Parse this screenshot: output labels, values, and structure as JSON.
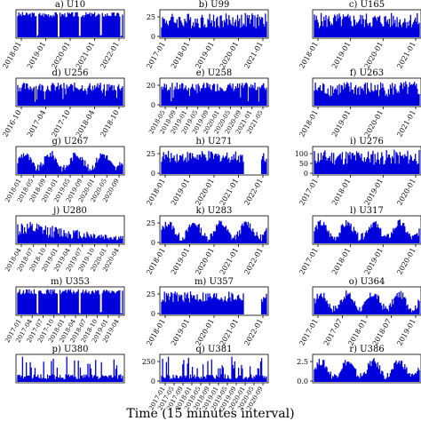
{
  "figure": {
    "xlabel": "Time (15 minutes interval)",
    "series_color": "#0000dd"
  },
  "chart_data": [
    {
      "type": "area",
      "title": "a) U10",
      "x_ticks": [
        "2018-01",
        "2019-01",
        "2020-01",
        "2021-01",
        "2022-01"
      ],
      "y_ticks": [],
      "pattern": "blocks"
    },
    {
      "type": "area",
      "title": "b) U99",
      "x_ticks": [
        "2017-01",
        "2018-01",
        "2019-01",
        "2020-01",
        "2021-01"
      ],
      "y_ticks": [
        "0",
        "25"
      ],
      "ylim": [
        0,
        30
      ],
      "pattern": "noisy"
    },
    {
      "type": "area",
      "title": "c) U165",
      "x_ticks": [
        "2018-01",
        "2019-01",
        "2020-01",
        "2021-01"
      ],
      "y_ticks": [],
      "pattern": "noisy"
    },
    {
      "type": "area",
      "title": "d) U256",
      "x_ticks": [
        "2016-10",
        "2017-04",
        "2017-10",
        "2018-04",
        "2018-10"
      ],
      "y_ticks": [],
      "pattern": "bands"
    },
    {
      "type": "area",
      "title": "e) U258",
      "x_ticks": [
        "2018-05",
        "2018-09",
        "2019-01",
        "2019-05",
        "2019-09",
        "2020-01",
        "2020-05",
        "2020-09",
        "2021-01",
        "2021-05"
      ],
      "y_ticks": [
        "0",
        "20"
      ],
      "ylim": [
        0,
        25
      ],
      "pattern": "bands"
    },
    {
      "type": "area",
      "title": "f) U263",
      "x_ticks": [
        "2018-01",
        "2019-01",
        "2020-01",
        "2021-01"
      ],
      "y_ticks": [],
      "pattern": "noisy"
    },
    {
      "type": "area",
      "title": "g) U267",
      "x_ticks": [
        "2018-01",
        "2018-05",
        "2018-09",
        "2019-01",
        "2019-05",
        "2019-09",
        "2020-01",
        "2020-05",
        "2020-09"
      ],
      "y_ticks": [],
      "pattern": "seasonal"
    },
    {
      "type": "area",
      "title": "h) U271",
      "x_ticks": [
        "2018-01",
        "2019-01",
        "2020-01",
        "2021-01",
        "2022-01"
      ],
      "y_ticks": [
        "0",
        "25"
      ],
      "ylim": [
        0,
        30
      ],
      "pattern": "gap"
    },
    {
      "type": "area",
      "title": "i) U276",
      "x_ticks": [
        "2017-01",
        "2018-01",
        "2019-01",
        "2020-01"
      ],
      "y_ticks": [
        "0",
        "50",
        "100"
      ],
      "ylim": [
        0,
        120
      ],
      "pattern": "noisy"
    },
    {
      "type": "area",
      "title": "j) U280",
      "x_ticks": [
        "2018-04",
        "2018-07",
        "2018-10",
        "2019-01",
        "2019-04",
        "2019-07",
        "2019-10",
        "2020-01",
        "2020-04"
      ],
      "y_ticks": [],
      "pattern": "decay"
    },
    {
      "type": "area",
      "title": "k) U283",
      "x_ticks": [
        "2018-01",
        "2019-01",
        "2020-01",
        "2021-01",
        "2022-01"
      ],
      "y_ticks": [
        "0",
        "25"
      ],
      "ylim": [
        0,
        30
      ],
      "pattern": "seasonal"
    },
    {
      "type": "area",
      "title": "l) U317",
      "x_ticks": [
        "2017-01",
        "2018-01",
        "2019-01",
        "2020-01"
      ],
      "y_ticks": [],
      "pattern": "seasonal"
    },
    {
      "type": "area",
      "title": "m) U353",
      "x_ticks": [
        "2017-01",
        "2017-04",
        "2017-07",
        "2017-10",
        "2018-01",
        "2018-04",
        "2018-07",
        "2018-10",
        "2019-01",
        "2019-04"
      ],
      "y_ticks": [],
      "pattern": "blocks"
    },
    {
      "type": "area",
      "title": "m) U357",
      "x_ticks": [
        "2018-01",
        "2019-01",
        "2020-01",
        "2021-01",
        "2022-01"
      ],
      "y_ticks": [
        "0",
        "25"
      ],
      "ylim": [
        0,
        30
      ],
      "pattern": "gap"
    },
    {
      "type": "area",
      "title": "o) U364",
      "x_ticks": [
        "2017-01",
        "2017-07",
        "2018-01",
        "2018-07",
        "2019-01"
      ],
      "y_ticks": [],
      "pattern": "seasonal"
    },
    {
      "type": "area",
      "title": "p) U380",
      "x_ticks": [],
      "y_ticks": [],
      "pattern": "spiky"
    },
    {
      "type": "area",
      "title": "q) U381",
      "x_ticks": [
        "2017-01",
        "2017-05",
        "2017-09",
        "2018-01",
        "2018-05",
        "2018-09",
        "2019-01",
        "2019-05",
        "2019-09",
        "2020-01",
        "2020-05",
        "2020-09"
      ],
      "y_ticks": [
        "0",
        "250"
      ],
      "ylim": [
        0,
        300
      ],
      "pattern": "spiky"
    },
    {
      "type": "area",
      "title": "r) U386",
      "x_ticks": [],
      "y_ticks": [
        "0.0",
        "2.5"
      ],
      "ylim": [
        0,
        3
      ],
      "pattern": "seasonal"
    }
  ]
}
